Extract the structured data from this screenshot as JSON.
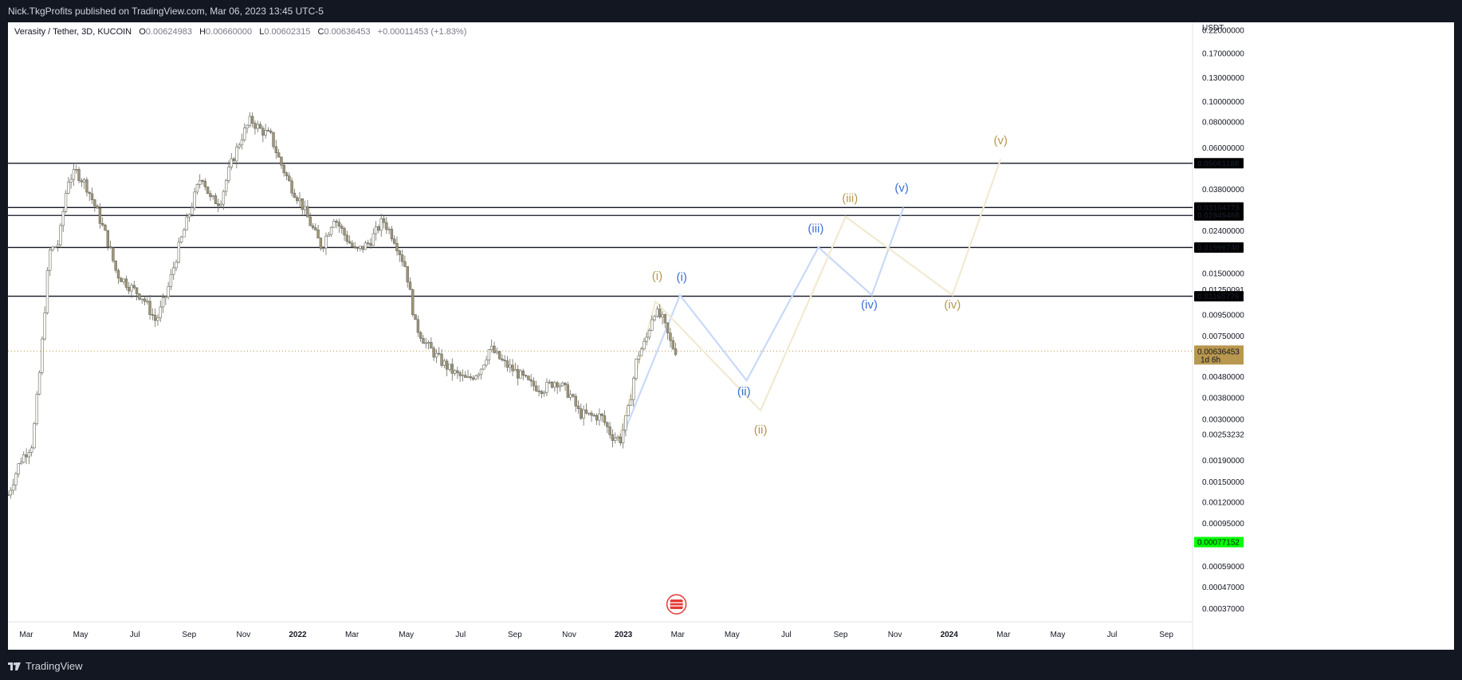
{
  "header": {
    "published": "Nick.TkgProfits published on TradingView.com, Mar 06, 2023 13:45 UTC-5"
  },
  "legend": {
    "symbol": "Verasity / Tether, 3D, KUCOIN",
    "open_label": "O",
    "open": "0.00624983",
    "high_label": "H",
    "high": "0.00660000",
    "low_label": "L",
    "low": "0.00602315",
    "close_label": "C",
    "close": "0.00636453",
    "change": "+0.00011453 (+1.83%)"
  },
  "footer": {
    "brand": "TradingView"
  },
  "chart_data": {
    "type": "candlestick",
    "y_scale": "log",
    "currency": "USDT",
    "ylim": [
      0.00032,
      0.24
    ],
    "y_ticks": [
      "0.22000000",
      "0.17000000",
      "0.13000000",
      "0.10000000",
      "0.08000000",
      "0.06000000",
      "0.03800000",
      "0.02400000",
      "0.01500000",
      "0.01250091",
      "0.00950000",
      "0.00750000",
      "0.00480000",
      "0.00380000",
      "0.00300000",
      "0.00253232",
      "0.00190000",
      "0.00150000",
      "0.00120000",
      "0.00095000",
      "0.00059000",
      "0.00047000",
      "0.00037000"
    ],
    "x_ticks": [
      "Mar",
      "May",
      "Jul",
      "Sep",
      "Nov",
      "2022",
      "Mar",
      "May",
      "Jul",
      "Sep",
      "Nov",
      "2023",
      "Mar",
      "May",
      "Jul",
      "Sep",
      "Nov",
      "2024",
      "Mar",
      "May",
      "Jul",
      "Sep"
    ],
    "x_range": [
      "2021-02-01",
      "2024-10-15"
    ],
    "horizontal_levels": [
      {
        "value": "0.05061188",
        "price": 0.05061188
      },
      {
        "value": "0.03104773",
        "price": 0.03104773
      },
      {
        "value": "0.02845458",
        "price": 0.02845458
      },
      {
        "value": "0.01996740",
        "price": 0.0199674
      },
      {
        "value": "0.01165776",
        "price": 0.01165776
      }
    ],
    "current_price": {
      "value": "0.00636453",
      "price": 0.00636453,
      "countdown": "1d 6h",
      "color": "#b8974e"
    },
    "marker": {
      "value": "0.00077152",
      "price": 0.00077152,
      "color": "#00ff00"
    },
    "price_series": [
      {
        "date": "2021-02-01",
        "price": 0.0013
      },
      {
        "date": "2021-02-15",
        "price": 0.0019
      },
      {
        "date": "2021-03-01",
        "price": 0.0023
      },
      {
        "date": "2021-03-10",
        "price": 0.0055
      },
      {
        "date": "2021-03-20",
        "price": 0.019
      },
      {
        "date": "2021-03-31",
        "price": 0.021
      },
      {
        "date": "2021-04-10",
        "price": 0.042
      },
      {
        "date": "2021-04-20",
        "price": 0.046
      },
      {
        "date": "2021-05-01",
        "price": 0.04
      },
      {
        "date": "2021-05-12",
        "price": 0.031
      },
      {
        "date": "2021-05-25",
        "price": 0.022
      },
      {
        "date": "2021-06-05",
        "price": 0.015
      },
      {
        "date": "2021-06-20",
        "price": 0.013
      },
      {
        "date": "2021-07-05",
        "price": 0.0115
      },
      {
        "date": "2021-07-20",
        "price": 0.0088
      },
      {
        "date": "2021-08-01",
        "price": 0.012
      },
      {
        "date": "2021-08-15",
        "price": 0.02
      },
      {
        "date": "2021-08-30",
        "price": 0.032
      },
      {
        "date": "2021-09-10",
        "price": 0.045
      },
      {
        "date": "2021-09-20",
        "price": 0.034
      },
      {
        "date": "2021-10-01",
        "price": 0.033
      },
      {
        "date": "2021-10-12",
        "price": 0.048
      },
      {
        "date": "2021-10-25",
        "price": 0.067
      },
      {
        "date": "2021-11-05",
        "price": 0.082
      },
      {
        "date": "2021-11-15",
        "price": 0.074
      },
      {
        "date": "2021-11-28",
        "price": 0.068
      },
      {
        "date": "2021-12-08",
        "price": 0.052
      },
      {
        "date": "2021-12-20",
        "price": 0.04
      },
      {
        "date": "2022-01-01",
        "price": 0.033
      },
      {
        "date": "2022-01-12",
        "price": 0.026
      },
      {
        "date": "2022-01-25",
        "price": 0.02
      },
      {
        "date": "2022-02-08",
        "price": 0.028
      },
      {
        "date": "2022-02-20",
        "price": 0.023
      },
      {
        "date": "2022-03-05",
        "price": 0.019
      },
      {
        "date": "2022-03-20",
        "price": 0.021
      },
      {
        "date": "2022-04-05",
        "price": 0.027
      },
      {
        "date": "2022-04-18",
        "price": 0.022
      },
      {
        "date": "2022-05-01",
        "price": 0.016
      },
      {
        "date": "2022-05-12",
        "price": 0.0085
      },
      {
        "date": "2022-05-25",
        "price": 0.0068
      },
      {
        "date": "2022-06-10",
        "price": 0.0057
      },
      {
        "date": "2022-06-25",
        "price": 0.005
      },
      {
        "date": "2022-07-10",
        "price": 0.0046
      },
      {
        "date": "2022-07-25",
        "price": 0.0052
      },
      {
        "date": "2022-08-05",
        "price": 0.0066
      },
      {
        "date": "2022-08-20",
        "price": 0.0056
      },
      {
        "date": "2022-09-05",
        "price": 0.005
      },
      {
        "date": "2022-09-20",
        "price": 0.0044
      },
      {
        "date": "2022-10-05",
        "price": 0.0042
      },
      {
        "date": "2022-10-20",
        "price": 0.0046
      },
      {
        "date": "2022-11-05",
        "price": 0.0039
      },
      {
        "date": "2022-11-15",
        "price": 0.0032
      },
      {
        "date": "2022-11-28",
        "price": 0.0031
      },
      {
        "date": "2022-12-10",
        "price": 0.0031
      },
      {
        "date": "2022-12-22",
        "price": 0.0025
      },
      {
        "date": "2023-01-01",
        "price": 0.0024
      },
      {
        "date": "2023-01-10",
        "price": 0.0033
      },
      {
        "date": "2023-01-20",
        "price": 0.006
      },
      {
        "date": "2023-01-30",
        "price": 0.0071
      },
      {
        "date": "2023-02-08",
        "price": 0.01
      },
      {
        "date": "2023-02-18",
        "price": 0.009
      },
      {
        "date": "2023-02-28",
        "price": 0.0068
      },
      {
        "date": "2023-03-06",
        "price": 0.00636
      }
    ],
    "wave_paths": [
      {
        "name": "blue",
        "color": "#c9d9f7",
        "label_color": "#3b6fd4",
        "points": [
          [
            "2023-01-02",
            0.0024
          ],
          [
            "2023-03-10",
            0.0118
          ],
          [
            "2023-05-25",
            0.0046
          ],
          [
            "2023-08-15",
            0.02
          ],
          [
            "2023-10-15",
            0.0118
          ],
          [
            "2023-11-20",
            0.031
          ]
        ],
        "labels": [
          {
            "text": "(i)",
            "date": "2023-03-12",
            "price": 0.0138
          },
          {
            "text": "(ii)",
            "date": "2023-05-22",
            "price": 0.0039
          },
          {
            "text": "(iii)",
            "date": "2023-08-12",
            "price": 0.0236
          },
          {
            "text": "(iv)",
            "date": "2023-10-12",
            "price": 0.0102
          },
          {
            "text": "(v)",
            "date": "2023-11-18",
            "price": 0.037
          }
        ]
      },
      {
        "name": "gold",
        "color": "#f1ead2",
        "label_color": "#b8974e",
        "points": [
          [
            "2022-12-30",
            0.0024
          ],
          [
            "2023-02-10",
            0.011
          ],
          [
            "2023-06-10",
            0.0033
          ],
          [
            "2023-09-15",
            0.028
          ],
          [
            "2024-01-15",
            0.0118
          ],
          [
            "2024-03-10",
            0.053
          ]
        ],
        "labels": [
          {
            "text": "(i)",
            "date": "2023-02-12",
            "price": 0.014
          },
          {
            "text": "(ii)",
            "date": "2023-06-10",
            "price": 0.00255
          },
          {
            "text": "(iii)",
            "date": "2023-09-20",
            "price": 0.033
          },
          {
            "text": "(iv)",
            "date": "2024-01-15",
            "price": 0.0102
          },
          {
            "text": "(v)",
            "date": "2024-03-10",
            "price": 0.0625
          }
        ]
      }
    ]
  }
}
